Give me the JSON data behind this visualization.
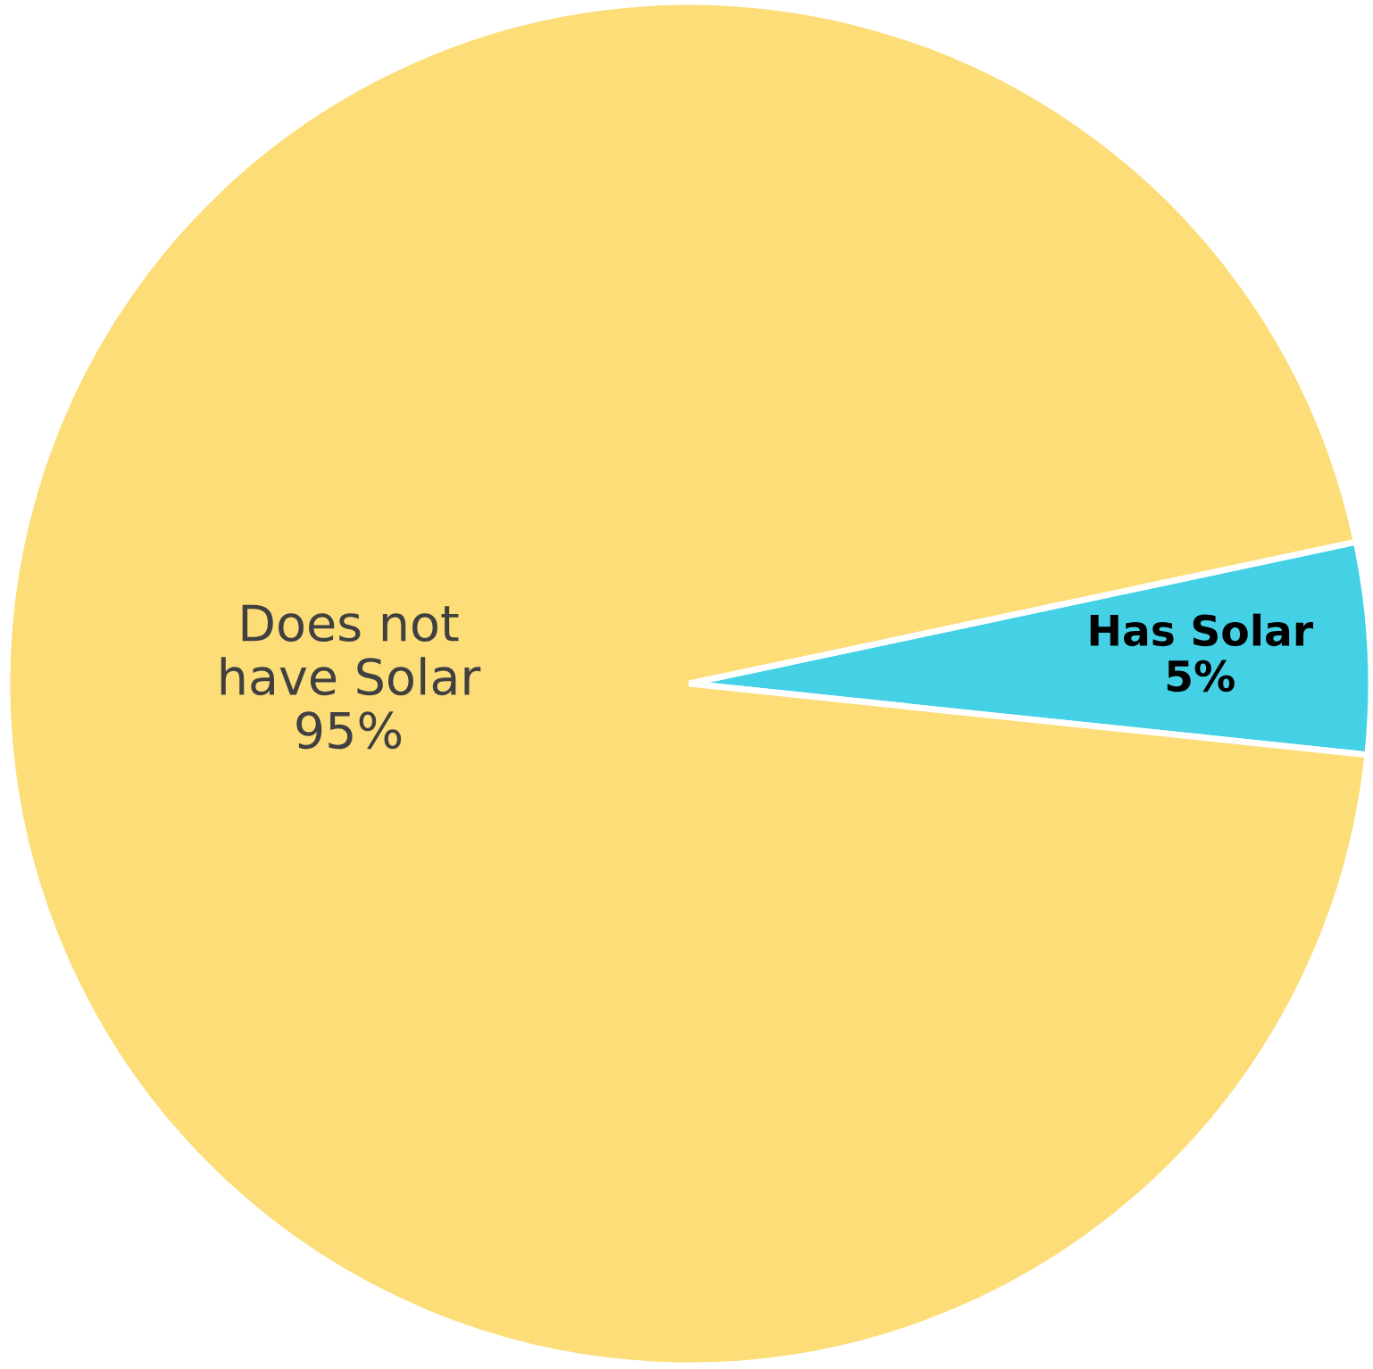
{
  "chart_data": {
    "type": "pie",
    "categories": [
      "Has Solar",
      "Does not have Solar"
    ],
    "values": [
      5,
      95
    ],
    "colors": [
      "#45d1e5",
      "#fcdd77"
    ],
    "value_labels": [
      "5%",
      "95%"
    ],
    "legend": false
  }
}
